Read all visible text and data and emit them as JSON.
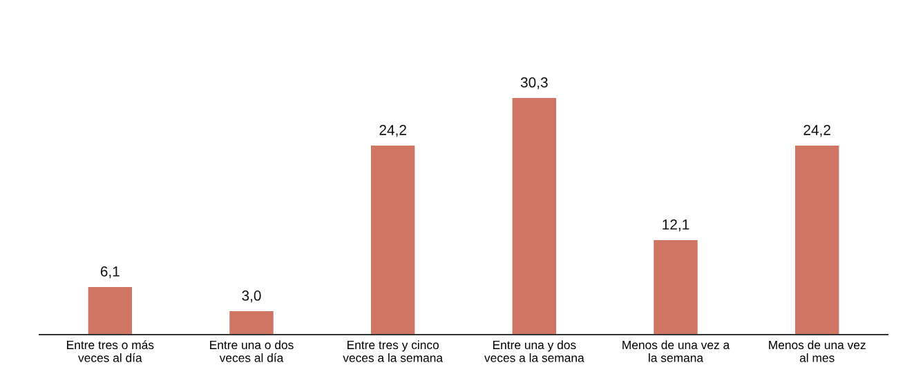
{
  "chart_data": {
    "type": "bar",
    "categories": [
      "Entre tres o más\nveces al día",
      "Entre una o dos\nveces al día",
      "Entre tres y cinco\nveces a la semana",
      "Entre una y dos\nveces a la semana",
      "Menos de una vez a\nla semana",
      "Menos de una vez\nal mes"
    ],
    "values": [
      6.1,
      3.0,
      24.2,
      30.3,
      12.1,
      24.2
    ],
    "value_labels": [
      "6,1",
      "3,0",
      "24,2",
      "30,3",
      "12,1",
      "24,2"
    ],
    "color": "#d07563",
    "grid": false,
    "legend": false
  }
}
